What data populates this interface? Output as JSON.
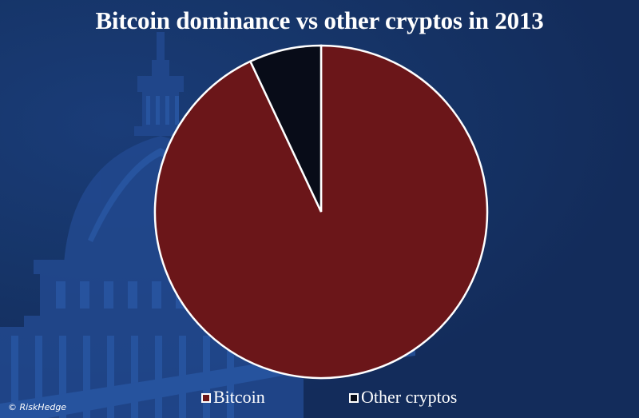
{
  "title": "Bitcoin dominance vs other cryptos in 2013",
  "credit": "© RiskHedge",
  "colors": {
    "background": "#132c5b",
    "dome": "#2552a0",
    "bitcoin": "#6b1619",
    "other": "#080c18",
    "outline": "#ffffff"
  },
  "legend": [
    {
      "label": "Bitcoin",
      "color": "#6b1619"
    },
    {
      "label": "Other cryptos",
      "color": "#080c18"
    }
  ],
  "chart_data": {
    "type": "pie",
    "title": "Bitcoin dominance vs other cryptos in 2013",
    "categories": [
      "Bitcoin",
      "Other cryptos"
    ],
    "values": [
      93,
      7
    ],
    "units": "percent (estimated from slice angles)",
    "colors": [
      "#6b1619",
      "#080c18"
    ],
    "start_angle": "12 o'clock, Other cryptos drawn counter-clockwise from top",
    "legend_position": "bottom",
    "data_labels": false
  }
}
